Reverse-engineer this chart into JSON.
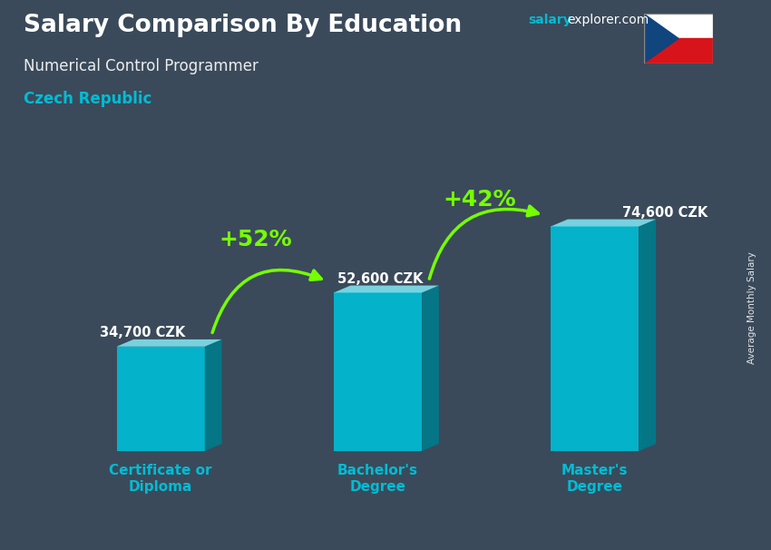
{
  "title": "Salary Comparison By Education",
  "subtitle": "Numerical Control Programmer",
  "country": "Czech Republic",
  "categories": [
    "Certificate or\nDiploma",
    "Bachelor's\nDegree",
    "Master's\nDegree"
  ],
  "values": [
    34700,
    52600,
    74600
  ],
  "value_labels": [
    "34,700 CZK",
    "52,600 CZK",
    "74,600 CZK"
  ],
  "pct_changes": [
    "+52%",
    "+42%"
  ],
  "bar_color_face": "#00bcd4",
  "bar_color_side": "#007a8a",
  "bar_color_top": "#80deea",
  "bg_color": "#3a4a5a",
  "title_color": "#ffffff",
  "subtitle_color": "#ffffff",
  "country_color": "#00bcd4",
  "category_color": "#00bcd4",
  "arrow_color": "#76ff03",
  "pct_color": "#76ff03",
  "ylabel": "Average Monthly Salary",
  "ylim": [
    0,
    95000
  ],
  "bar_positions": [
    0.18,
    0.5,
    0.82
  ],
  "bar_width": 0.13,
  "figsize": [
    8.5,
    6.06
  ],
  "dpi": 100
}
